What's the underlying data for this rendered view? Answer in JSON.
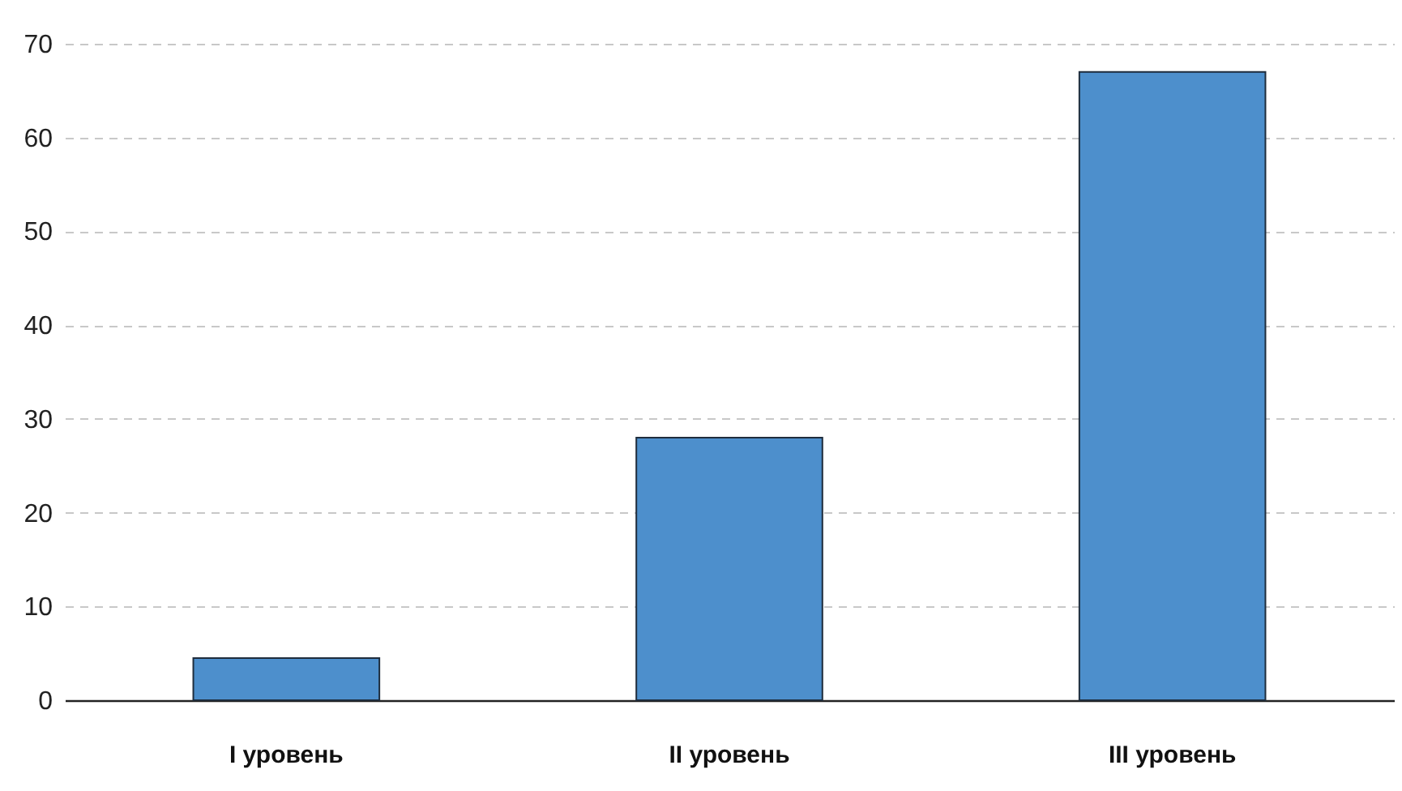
{
  "chart_data": {
    "type": "bar",
    "categories": [
      "I уровень",
      "II уровень",
      "III уровень"
    ],
    "values": [
      4.5,
      28,
      67
    ],
    "color": "#4d8fcc",
    "ylim": [
      0,
      70
    ],
    "yticks": [
      0,
      10,
      20,
      30,
      40,
      50,
      60,
      70
    ],
    "grid": "y"
  }
}
